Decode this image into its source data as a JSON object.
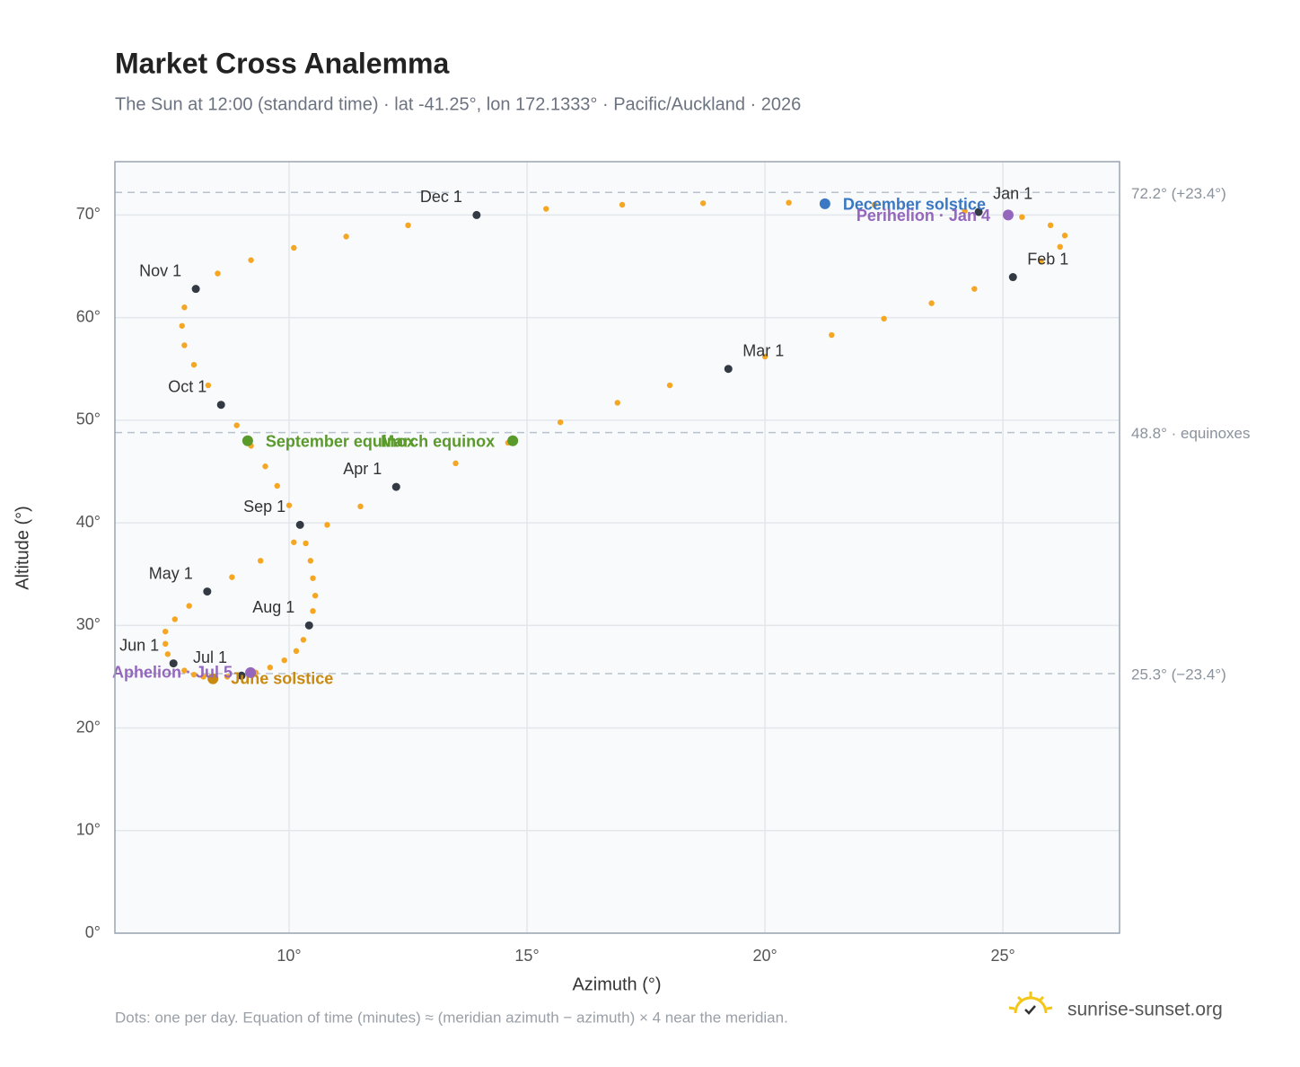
{
  "chart_data": {
    "type": "analemma",
    "title": "Market Cross Analemma",
    "subtitle": "The Sun at 12:00 (standard time) · lat -41.25°, lon 172.1333° · Pacific/Auckland · 2026",
    "x_label": "Azimuth (°)",
    "y_label": "Altitude (°)",
    "footnote": "Dots: one per day. Equation of time (minutes) ≈ (meridian azimuth − azimuth) × 4 near the meridian.",
    "brand": "sunrise-sunset.org",
    "xlim": [
      6.34,
      27.45
    ],
    "ylim": [
      0,
      75.2
    ],
    "xticks": [
      {
        "value": 10,
        "label": "10°"
      },
      {
        "value": 15,
        "label": "15°"
      },
      {
        "value": 20,
        "label": "20°"
      },
      {
        "value": 25,
        "label": "25°"
      }
    ],
    "yticks": [
      {
        "value": 0,
        "label": "0°"
      },
      {
        "value": 10,
        "label": "10°"
      },
      {
        "value": 20,
        "label": "20°"
      },
      {
        "value": 30,
        "label": "30°"
      },
      {
        "value": 40,
        "label": "40°"
      },
      {
        "value": 50,
        "label": "50°"
      },
      {
        "value": 60,
        "label": "60°"
      },
      {
        "value": 70,
        "label": "70°"
      }
    ],
    "grid": true,
    "reference_lines": [
      {
        "value": 72.2,
        "label": "72.2° (+23.4°)"
      },
      {
        "value": 48.8,
        "label": "48.8° · equinoxes"
      },
      {
        "value": 25.3,
        "label": "25.3° (−23.4°)"
      }
    ],
    "daily_dots": {
      "color": "#f5a623",
      "x": [
        24.49,
        25.4,
        26.0,
        26.3,
        26.2,
        25.8,
        25.21,
        24.4,
        23.5,
        22.5,
        21.4,
        20.0,
        19.23,
        18.0,
        16.9,
        15.7,
        14.6,
        13.5,
        12.25,
        11.5,
        10.8,
        10.1,
        9.4,
        8.8,
        8.28,
        7.9,
        7.6,
        7.4,
        7.4,
        7.45,
        7.57,
        7.8,
        8.0,
        8.2,
        8.4,
        8.7,
        9.0,
        9.3,
        9.6,
        9.9,
        10.15,
        10.3,
        10.42,
        10.5,
        10.55,
        10.5,
        10.45,
        10.35,
        10.23,
        10.0,
        9.75,
        9.5,
        9.2,
        8.9,
        8.57,
        8.3,
        8.0,
        7.8,
        7.75,
        7.8,
        8.04,
        8.5,
        9.2,
        10.1,
        11.2,
        12.5,
        13.94,
        15.4,
        17.0,
        18.7,
        20.5,
        22.3,
        24.2
      ],
      "y": [
        70.3,
        69.8,
        69.0,
        68.0,
        66.9,
        65.5,
        63.95,
        62.8,
        61.4,
        59.9,
        58.3,
        56.2,
        55.0,
        53.4,
        51.7,
        49.8,
        47.8,
        45.8,
        43.5,
        41.6,
        39.8,
        38.1,
        36.3,
        34.7,
        33.3,
        31.9,
        30.6,
        29.4,
        28.2,
        27.2,
        26.3,
        25.6,
        25.2,
        25.0,
        24.9,
        25.0,
        25.1,
        25.4,
        25.9,
        26.6,
        27.5,
        28.6,
        30.0,
        31.4,
        32.9,
        34.6,
        36.3,
        38.0,
        39.8,
        41.7,
        43.6,
        45.5,
        47.5,
        49.5,
        51.5,
        53.4,
        55.4,
        57.3,
        59.2,
        61.0,
        62.8,
        64.3,
        65.6,
        66.8,
        67.9,
        69.0,
        70.0,
        70.6,
        71.0,
        71.15,
        71.2,
        71.0,
        70.4
      ]
    },
    "month_markers": {
      "color": "#333a44",
      "labels": [
        "Jan 1",
        "Feb 1",
        "Mar 1",
        "Apr 1",
        "May 1",
        "Jun 1",
        "Jul 1",
        "Aug 1",
        "Sep 1",
        "Oct 1",
        "Nov 1",
        "Dec 1"
      ],
      "x": [
        24.49,
        25.21,
        19.23,
        12.25,
        8.28,
        7.57,
        9.0,
        10.42,
        10.23,
        8.57,
        8.04,
        13.94
      ],
      "y": [
        70.3,
        63.95,
        55.0,
        43.5,
        33.3,
        26.3,
        25.1,
        30.0,
        39.8,
        51.5,
        62.8,
        70.0
      ]
    },
    "events": [
      {
        "label": "December solstice",
        "color": "#3a78c3",
        "x": 21.26,
        "y": 71.1
      },
      {
        "label": "Perihelion · Jan 4",
        "color": "#9467bd",
        "x": 25.11,
        "y": 70.0
      },
      {
        "label": "March equinox",
        "color": "#5a9a2a",
        "x": 14.7,
        "y": 48.0
      },
      {
        "label": "September equinox",
        "color": "#5a9a2a",
        "x": 9.13,
        "y": 48.0
      },
      {
        "label": "June solstice",
        "color": "#c98a12",
        "x": 8.4,
        "y": 24.8
      },
      {
        "label": "Aphelion · Jul 5",
        "color": "#9467bd",
        "x": 9.19,
        "y": 25.4
      }
    ]
  }
}
